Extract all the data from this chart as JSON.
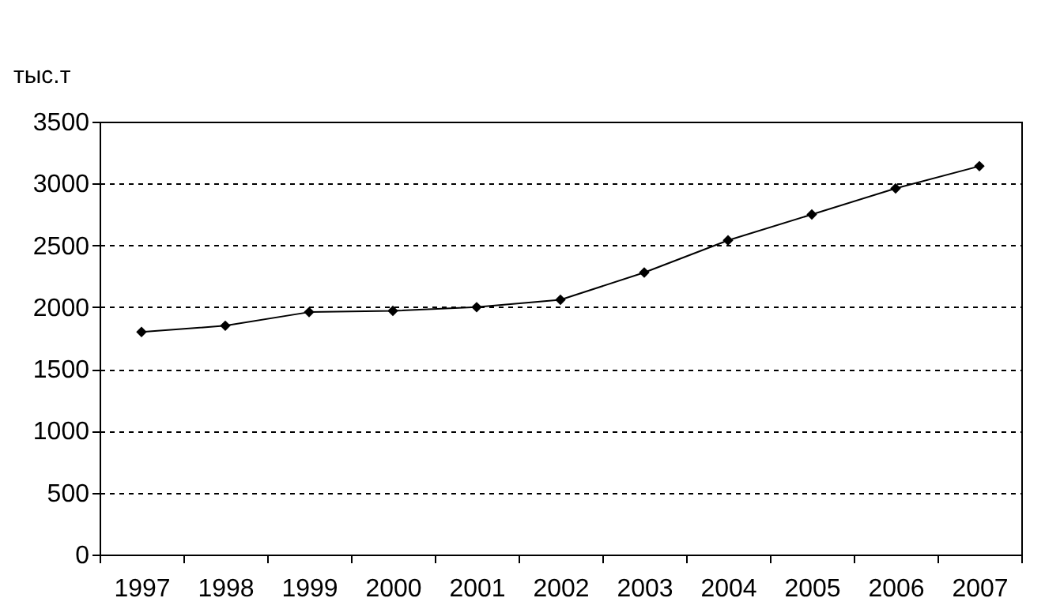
{
  "chart_data": {
    "type": "line",
    "ylabel": "тыс.т",
    "categories": [
      "1997",
      "1998",
      "1999",
      "2000",
      "2001",
      "2002",
      "2003",
      "2004",
      "2005",
      "2006",
      "2007"
    ],
    "series": [
      {
        "color": "#000000",
        "values": [
          1800,
          1850,
          1960,
          1970,
          2000,
          2060,
          2280,
          2540,
          2750,
          2960,
          3140
        ]
      }
    ],
    "ylim": [
      0,
      3500
    ],
    "yticks": [
      0,
      500,
      1000,
      1500,
      2000,
      2500,
      3000,
      3500
    ],
    "grid": "y",
    "marker": "diamond",
    "line_style": "solid"
  }
}
